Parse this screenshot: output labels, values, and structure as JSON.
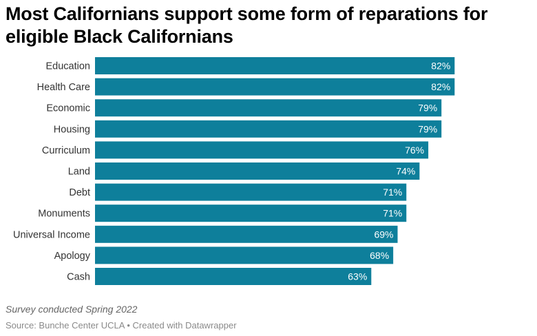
{
  "title": "Most Californians support some form of reparations for eligible Black Californians",
  "note": "Survey conducted Spring 2022",
  "footer": {
    "source_label": "Source: ",
    "source": "Bunche Center UCLA",
    "separator": " • ",
    "credit": "Created with Datawrapper"
  },
  "colors": {
    "bar": "#0e7f9b",
    "bar_label": "#ffffff",
    "category_label": "#333333"
  },
  "chart_data": {
    "type": "bar",
    "orientation": "horizontal",
    "categories": [
      "Education",
      "Health Care",
      "Economic",
      "Housing",
      "Curriculum",
      "Land",
      "Debt",
      "Monuments",
      "Universal Income",
      "Apology",
      "Cash"
    ],
    "values": [
      82,
      82,
      79,
      79,
      76,
      74,
      71,
      71,
      69,
      68,
      63
    ],
    "value_labels": [
      "82%",
      "82%",
      "79%",
      "79%",
      "76%",
      "74%",
      "71%",
      "71%",
      "69%",
      "68%",
      "63%"
    ],
    "unit": "%",
    "xlim": [
      0,
      100
    ],
    "grid": false,
    "legend": "none"
  }
}
